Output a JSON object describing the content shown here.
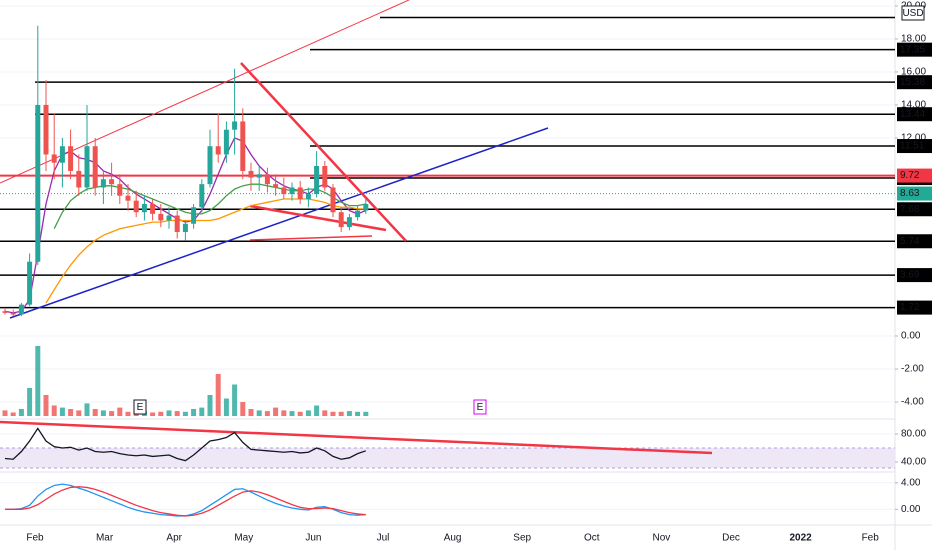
{
  "chart_data": {
    "type": "candlestick",
    "currency": "USD",
    "categories": [
      "Feb",
      "Mar",
      "Apr",
      "May",
      "Jun",
      "Jul",
      "Aug",
      "Sep",
      "Oct",
      "Nov",
      "Dec",
      "2022",
      "Feb"
    ],
    "candles": [
      [
        1.5,
        1.7,
        1.3,
        1.4
      ],
      [
        1.4,
        1.6,
        1.2,
        1.3
      ],
      [
        1.3,
        2.0,
        1.2,
        1.9
      ],
      [
        1.9,
        5,
        1.8,
        4.5
      ],
      [
        4.5,
        18.8,
        4.3,
        14
      ],
      [
        14,
        15.5,
        10,
        11
      ],
      [
        11,
        13.5,
        9.5,
        10.5
      ],
      [
        10.5,
        12,
        9,
        11.5
      ],
      [
        11.5,
        12.5,
        9.5,
        10
      ],
      [
        10,
        11,
        8.5,
        9
      ],
      [
        9,
        14,
        8.8,
        11.5
      ],
      [
        11.5,
        12,
        8.5,
        9
      ],
      [
        9,
        10,
        8,
        9.5
      ],
      [
        9.5,
        10.5,
        8.5,
        9.2
      ],
      [
        9.2,
        9.8,
        8,
        8.5
      ],
      [
        8.5,
        9.2,
        7.6,
        8.2
      ],
      [
        8.2,
        8.8,
        7.2,
        7.5
      ],
      [
        7.5,
        8.5,
        7,
        8
      ],
      [
        8,
        8.3,
        7,
        7.4
      ],
      [
        7.4,
        8,
        6.6,
        7
      ],
      [
        7,
        7.8,
        6.5,
        7.3
      ],
      [
        7.3,
        7.6,
        5.9,
        6.3
      ],
      [
        6.3,
        7,
        5.8,
        6.8
      ],
      [
        6.8,
        8,
        6.5,
        7.8
      ],
      [
        7.8,
        9.5,
        7.5,
        9.2
      ],
      [
        9.2,
        12.5,
        9,
        11.5
      ],
      [
        11.5,
        13.5,
        10.5,
        11
      ],
      [
        11,
        13,
        10.5,
        12.5
      ],
      [
        12.5,
        16.2,
        11,
        13
      ],
      [
        13,
        13.8,
        9.5,
        10
      ],
      [
        10,
        10.5,
        8.8,
        9.6
      ],
      [
        9.6,
        10.3,
        8.8,
        9.8
      ],
      [
        9.8,
        10.2,
        8.7,
        9.2
      ],
      [
        9.2,
        9.8,
        8.5,
        9
      ],
      [
        9,
        9.6,
        8.3,
        8.6
      ],
      [
        8.6,
        9.3,
        8.2,
        9
      ],
      [
        9,
        9.4,
        8,
        8.3
      ],
      [
        8.3,
        9,
        7.8,
        8.6
      ],
      [
        8.6,
        11.2,
        8.4,
        10.3
      ],
      [
        10.3,
        10.6,
        8.8,
        9
      ],
      [
        9,
        9.2,
        7.2,
        7.5
      ],
      [
        7.5,
        7.8,
        6.3,
        6.6
      ],
      [
        6.6,
        7.4,
        6.4,
        7.2
      ],
      [
        7.2,
        7.9,
        7,
        7.6
      ],
      [
        7.6,
        8.3,
        7.4,
        8.0
      ]
    ],
    "up_color": "#26a69a",
    "down_color": "#ef5350",
    "volume": [
      8,
      5,
      10,
      40,
      100,
      30,
      15,
      12,
      10,
      8,
      18,
      10,
      8,
      7,
      12,
      6,
      6,
      7,
      5,
      6,
      8,
      7,
      6,
      10,
      12,
      30,
      60,
      25,
      45,
      20,
      10,
      8,
      7,
      12,
      8,
      7,
      6,
      8,
      15,
      8,
      6,
      6,
      7,
      6,
      6
    ],
    "moving_averages": [
      {
        "color": "#9c27b0",
        "values": [
          1.5,
          1.4,
          1.5,
          2.2,
          5,
          8,
          10,
          11,
          11.2,
          10.8,
          10.7,
          10.5,
          10,
          9.8,
          9.5,
          9,
          8.6,
          8.3,
          8,
          7.7,
          7.4,
          7.1,
          6.9,
          7,
          7.6,
          8.6,
          9.8,
          11,
          12,
          11.8,
          11,
          10.3,
          9.8,
          9.4,
          9.1,
          8.9,
          8.8,
          8.6,
          9,
          9.2,
          8.9,
          8.2,
          7.6,
          7.4,
          7.6
        ]
      },
      {
        "color": "#43a047",
        "values": [
          null,
          null,
          null,
          null,
          null,
          null,
          6.5,
          7.5,
          8.2,
          8.6,
          8.9,
          9,
          9.1,
          9.1,
          9,
          8.9,
          8.7,
          8.5,
          8.3,
          8.1,
          7.9,
          7.7,
          7.5,
          7.4,
          7.4,
          7.6,
          8,
          8.5,
          8.9,
          9.1,
          9.2,
          9.2,
          9.1,
          9,
          8.9,
          8.8,
          8.8,
          8.9,
          8.9,
          8.7,
          8.4,
          8.1,
          7.9,
          7.9,
          8.0
        ]
      },
      {
        "color": "#ff9800",
        "values": [
          null,
          null,
          null,
          null,
          null,
          2,
          2.8,
          3.6,
          4.3,
          4.9,
          5.4,
          5.8,
          6.1,
          6.3,
          6.5,
          6.6,
          6.7,
          6.8,
          6.9,
          6.9,
          7,
          7,
          7,
          7,
          7,
          7,
          7.1,
          7.3,
          7.5,
          7.7,
          7.9,
          8,
          8.1,
          8.2,
          8.3,
          8.3,
          8.3,
          8.3,
          8.2,
          8.1,
          7.9,
          7.8,
          7.8,
          7.7,
          7.7
        ]
      }
    ],
    "ylim": [
      -4.97,
      20.36
    ],
    "yticks": [
      {
        "value": 20,
        "label": "20.00"
      },
      {
        "value": 18,
        "label": "18.00"
      },
      {
        "value": 16,
        "label": "16.00"
      },
      {
        "value": 14,
        "label": "14.00"
      },
      {
        "value": 12,
        "label": "12.00"
      },
      {
        "value": 0,
        "label": "0.00"
      },
      {
        "value": -2,
        "label": "-2.00"
      },
      {
        "value": -4,
        "label": "-4.00"
      }
    ],
    "grid": true,
    "unlabeled_level": 19.3,
    "levels": [
      17.35,
      15.38,
      13.44,
      11.51,
      9.57,
      7.68,
      5.74,
      3.69,
      1.72
    ],
    "resistance": 9.72,
    "resistance_color": "#f23645",
    "last_price": 8.63,
    "last_color": "#22ab94",
    "earnings_markers": [
      "E",
      "E"
    ],
    "rsi": {
      "color": "#131722",
      "values": [
        45,
        44,
        55,
        70,
        88,
        70,
        62,
        60,
        61,
        57,
        60,
        55,
        54,
        55,
        52,
        50,
        49,
        50,
        48,
        49,
        50,
        45,
        42,
        50,
        60,
        70,
        72,
        75,
        82,
        68,
        58,
        57,
        56,
        55,
        54,
        55,
        53,
        54,
        60,
        56,
        48,
        44,
        46,
        52,
        56
      ],
      "ylim": [
        28.6,
        100
      ],
      "yticks": [
        {
          "value": 80,
          "label": "80.00"
        },
        {
          "value": 40,
          "label": "40.00"
        }
      ]
    },
    "macd": {
      "ylim": [
        -2.22,
        5.33
      ],
      "yticks": [
        {
          "value": 4,
          "label": "4.00"
        },
        {
          "value": 0,
          "label": "0.00"
        }
      ],
      "series": [
        {
          "color": "#2196f3",
          "values": [
            0,
            0,
            0.1,
            0.6,
            2,
            3,
            3.6,
            3.8,
            3.6,
            3.2,
            2.8,
            2.3,
            1.8,
            1.3,
            0.8,
            0.3,
            -0.1,
            -0.4,
            -0.6,
            -0.8,
            -0.9,
            -1,
            -1,
            -0.7,
            -0.2,
            0.6,
            1.4,
            2.2,
            3,
            3.1,
            2.6,
            2,
            1.4,
            0.9,
            0.5,
            0.2,
            0,
            -0.1,
            0.3,
            0.4,
            0,
            -0.5,
            -0.8,
            -0.9,
            -0.8
          ]
        },
        {
          "color": "#f23645",
          "values": [
            0,
            0,
            0,
            0.2,
            0.7,
            1.5,
            2.3,
            2.9,
            3.3,
            3.4,
            3.3,
            3,
            2.6,
            2.1,
            1.6,
            1.1,
            0.6,
            0.2,
            -0.2,
            -0.5,
            -0.7,
            -0.9,
            -1,
            -0.9,
            -0.6,
            -0.1,
            0.6,
            1.3,
            2,
            2.6,
            2.8,
            2.6,
            2.2,
            1.7,
            1.2,
            0.7,
            0.3,
            0.1,
            0.1,
            0.2,
            0.1,
            -0.2,
            -0.5,
            -0.7,
            -0.8
          ]
        }
      ]
    }
  }
}
